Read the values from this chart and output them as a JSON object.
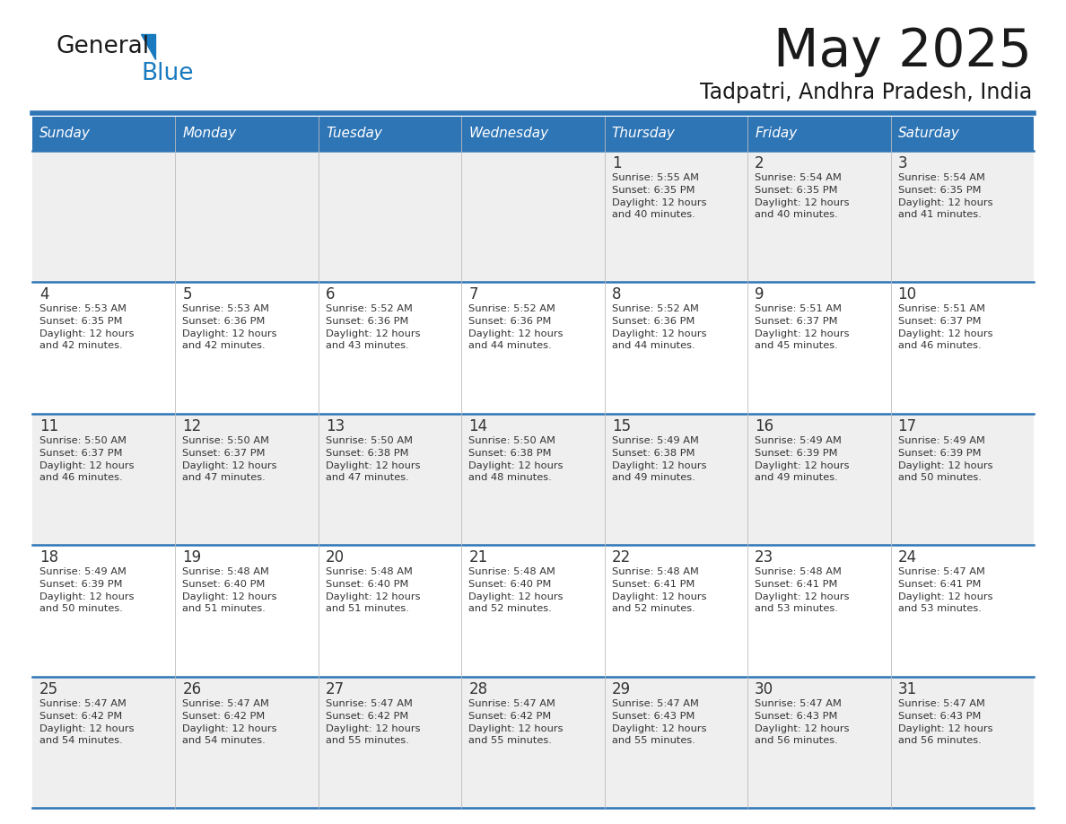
{
  "title": "May 2025",
  "subtitle": "Tadpatri, Andhra Pradesh, India",
  "header_bg": "#2E75B6",
  "header_text_color": "#FFFFFF",
  "row_bg_light": "#EFEFEF",
  "row_bg_white": "#FFFFFF",
  "text_color": "#333333",
  "separator_color": "#2E75B6",
  "day_headers": [
    "Sunday",
    "Monday",
    "Tuesday",
    "Wednesday",
    "Thursday",
    "Friday",
    "Saturday"
  ],
  "calendar_data": [
    [
      {
        "day": "",
        "sunrise": "",
        "sunset": "",
        "daylight_hrs": "",
        "daylight_min": ""
      },
      {
        "day": "",
        "sunrise": "",
        "sunset": "",
        "daylight_hrs": "",
        "daylight_min": ""
      },
      {
        "day": "",
        "sunrise": "",
        "sunset": "",
        "daylight_hrs": "",
        "daylight_min": ""
      },
      {
        "day": "",
        "sunrise": "",
        "sunset": "",
        "daylight_hrs": "",
        "daylight_min": ""
      },
      {
        "day": "1",
        "sunrise": "5:55 AM",
        "sunset": "6:35 PM",
        "daylight_hrs": "12 hours",
        "daylight_min": "and 40 minutes."
      },
      {
        "day": "2",
        "sunrise": "5:54 AM",
        "sunset": "6:35 PM",
        "daylight_hrs": "12 hours",
        "daylight_min": "and 40 minutes."
      },
      {
        "day": "3",
        "sunrise": "5:54 AM",
        "sunset": "6:35 PM",
        "daylight_hrs": "12 hours",
        "daylight_min": "and 41 minutes."
      }
    ],
    [
      {
        "day": "4",
        "sunrise": "5:53 AM",
        "sunset": "6:35 PM",
        "daylight_hrs": "12 hours",
        "daylight_min": "and 42 minutes."
      },
      {
        "day": "5",
        "sunrise": "5:53 AM",
        "sunset": "6:36 PM",
        "daylight_hrs": "12 hours",
        "daylight_min": "and 42 minutes."
      },
      {
        "day": "6",
        "sunrise": "5:52 AM",
        "sunset": "6:36 PM",
        "daylight_hrs": "12 hours",
        "daylight_min": "and 43 minutes."
      },
      {
        "day": "7",
        "sunrise": "5:52 AM",
        "sunset": "6:36 PM",
        "daylight_hrs": "12 hours",
        "daylight_min": "and 44 minutes."
      },
      {
        "day": "8",
        "sunrise": "5:52 AM",
        "sunset": "6:36 PM",
        "daylight_hrs": "12 hours",
        "daylight_min": "and 44 minutes."
      },
      {
        "day": "9",
        "sunrise": "5:51 AM",
        "sunset": "6:37 PM",
        "daylight_hrs": "12 hours",
        "daylight_min": "and 45 minutes."
      },
      {
        "day": "10",
        "sunrise": "5:51 AM",
        "sunset": "6:37 PM",
        "daylight_hrs": "12 hours",
        "daylight_min": "and 46 minutes."
      }
    ],
    [
      {
        "day": "11",
        "sunrise": "5:50 AM",
        "sunset": "6:37 PM",
        "daylight_hrs": "12 hours",
        "daylight_min": "and 46 minutes."
      },
      {
        "day": "12",
        "sunrise": "5:50 AM",
        "sunset": "6:37 PM",
        "daylight_hrs": "12 hours",
        "daylight_min": "and 47 minutes."
      },
      {
        "day": "13",
        "sunrise": "5:50 AM",
        "sunset": "6:38 PM",
        "daylight_hrs": "12 hours",
        "daylight_min": "and 47 minutes."
      },
      {
        "day": "14",
        "sunrise": "5:50 AM",
        "sunset": "6:38 PM",
        "daylight_hrs": "12 hours",
        "daylight_min": "and 48 minutes."
      },
      {
        "day": "15",
        "sunrise": "5:49 AM",
        "sunset": "6:38 PM",
        "daylight_hrs": "12 hours",
        "daylight_min": "and 49 minutes."
      },
      {
        "day": "16",
        "sunrise": "5:49 AM",
        "sunset": "6:39 PM",
        "daylight_hrs": "12 hours",
        "daylight_min": "and 49 minutes."
      },
      {
        "day": "17",
        "sunrise": "5:49 AM",
        "sunset": "6:39 PM",
        "daylight_hrs": "12 hours",
        "daylight_min": "and 50 minutes."
      }
    ],
    [
      {
        "day": "18",
        "sunrise": "5:49 AM",
        "sunset": "6:39 PM",
        "daylight_hrs": "12 hours",
        "daylight_min": "and 50 minutes."
      },
      {
        "day": "19",
        "sunrise": "5:48 AM",
        "sunset": "6:40 PM",
        "daylight_hrs": "12 hours",
        "daylight_min": "and 51 minutes."
      },
      {
        "day": "20",
        "sunrise": "5:48 AM",
        "sunset": "6:40 PM",
        "daylight_hrs": "12 hours",
        "daylight_min": "and 51 minutes."
      },
      {
        "day": "21",
        "sunrise": "5:48 AM",
        "sunset": "6:40 PM",
        "daylight_hrs": "12 hours",
        "daylight_min": "and 52 minutes."
      },
      {
        "day": "22",
        "sunrise": "5:48 AM",
        "sunset": "6:41 PM",
        "daylight_hrs": "12 hours",
        "daylight_min": "and 52 minutes."
      },
      {
        "day": "23",
        "sunrise": "5:48 AM",
        "sunset": "6:41 PM",
        "daylight_hrs": "12 hours",
        "daylight_min": "and 53 minutes."
      },
      {
        "day": "24",
        "sunrise": "5:47 AM",
        "sunset": "6:41 PM",
        "daylight_hrs": "12 hours",
        "daylight_min": "and 53 minutes."
      }
    ],
    [
      {
        "day": "25",
        "sunrise": "5:47 AM",
        "sunset": "6:42 PM",
        "daylight_hrs": "12 hours",
        "daylight_min": "and 54 minutes."
      },
      {
        "day": "26",
        "sunrise": "5:47 AM",
        "sunset": "6:42 PM",
        "daylight_hrs": "12 hours",
        "daylight_min": "and 54 minutes."
      },
      {
        "day": "27",
        "sunrise": "5:47 AM",
        "sunset": "6:42 PM",
        "daylight_hrs": "12 hours",
        "daylight_min": "and 55 minutes."
      },
      {
        "day": "28",
        "sunrise": "5:47 AM",
        "sunset": "6:42 PM",
        "daylight_hrs": "12 hours",
        "daylight_min": "and 55 minutes."
      },
      {
        "day": "29",
        "sunrise": "5:47 AM",
        "sunset": "6:43 PM",
        "daylight_hrs": "12 hours",
        "daylight_min": "and 55 minutes."
      },
      {
        "day": "30",
        "sunrise": "5:47 AM",
        "sunset": "6:43 PM",
        "daylight_hrs": "12 hours",
        "daylight_min": "and 56 minutes."
      },
      {
        "day": "31",
        "sunrise": "5:47 AM",
        "sunset": "6:43 PM",
        "daylight_hrs": "12 hours",
        "daylight_min": "and 56 minutes."
      }
    ]
  ],
  "logo_color_general": "#1a1a1a",
  "logo_color_blue": "#1a7abf",
  "logo_triangle_color": "#1a7abf",
  "title_color": "#1a1a1a",
  "subtitle_color": "#1a1a1a"
}
